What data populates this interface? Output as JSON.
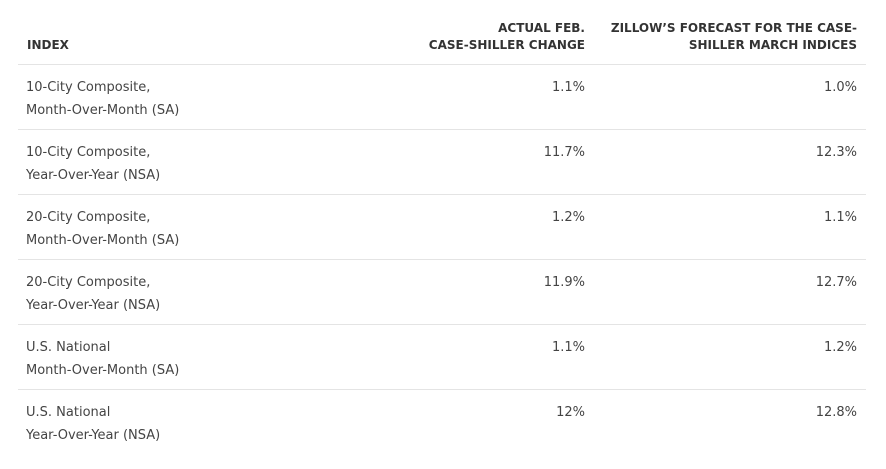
{
  "table": {
    "headers": [
      [
        "INDEX"
      ],
      [
        "ACTUAL FEB.",
        "CASE-SHILLER CHANGE"
      ],
      [
        "ZILLOW’S FORECAST FOR THE CASE-",
        "SHILLER MARCH INDICES"
      ]
    ],
    "rows": [
      [
        [
          "10-City Composite,",
          "Month-Over-Month (SA)"
        ],
        "1.1%",
        "1.0%"
      ],
      [
        [
          "10-City Composite,",
          "Year-Over-Year (NSA)"
        ],
        "11.7%",
        "12.3%"
      ],
      [
        [
          "20-City Composite,",
          "Month-Over-Month (SA)"
        ],
        "1.2%",
        "1.1%"
      ],
      [
        [
          "20-City Composite,",
          "Year-Over-Year (NSA)"
        ],
        "11.9%",
        "12.7%"
      ],
      [
        [
          "U.S. National",
          "Month-Over-Month (SA)"
        ],
        "1.1%",
        "1.2%"
      ],
      [
        [
          "U.S. National",
          "Year-Over-Year (NSA)"
        ],
        "12%",
        "12.8%"
      ]
    ]
  }
}
